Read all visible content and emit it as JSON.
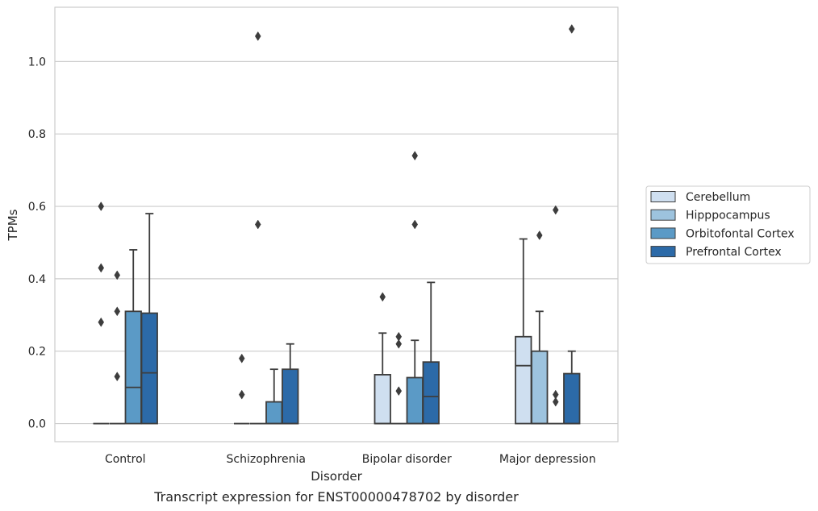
{
  "chart_data": {
    "type": "box",
    "caption": "Transcript expression for ENST00000478702 by disorder",
    "xlabel": "Disorder",
    "ylabel": "TPMs",
    "ylim": [
      -0.05,
      1.15
    ],
    "yticks": [
      0.0,
      0.2,
      0.4,
      0.6,
      0.8,
      1.0
    ],
    "ytick_labels": [
      "0.0",
      "0.2",
      "0.4",
      "0.6",
      "0.8",
      "1.0"
    ],
    "grid": "horizontal",
    "legend_position": "right",
    "categories": [
      "Control",
      "Schizophrenia",
      "Bipolar disorder",
      "Major depression"
    ],
    "series": [
      {
        "name": "Cerebellum",
        "color": "#cfdff0",
        "boxes": [
          {
            "q1": 0,
            "median": 0,
            "q3": 0,
            "whisker_low": 0,
            "whisker_high": 0,
            "outliers": [
              0.6,
              0.43,
              0.28
            ]
          },
          {
            "q1": 0,
            "median": 0,
            "q3": 0,
            "whisker_low": 0,
            "whisker_high": 0,
            "outliers": [
              0.18,
              0.08
            ]
          },
          {
            "q1": 0,
            "median": 0,
            "q3": 0.135,
            "whisker_low": 0,
            "whisker_high": 0.25,
            "outliers": [
              0.35
            ]
          },
          {
            "q1": 0,
            "median": 0.16,
            "q3": 0.24,
            "whisker_low": 0,
            "whisker_high": 0.51,
            "outliers": []
          }
        ]
      },
      {
        "name": "Hipppocampus",
        "color": "#9dc3de",
        "boxes": [
          {
            "q1": 0,
            "median": 0,
            "q3": 0,
            "whisker_low": 0,
            "whisker_high": 0,
            "outliers": [
              0.41,
              0.31,
              0.13
            ]
          },
          {
            "q1": 0,
            "median": 0,
            "q3": 0,
            "whisker_low": 0,
            "whisker_high": 0,
            "outliers": [
              1.07,
              0.55
            ]
          },
          {
            "q1": 0,
            "median": 0,
            "q3": 0,
            "whisker_low": 0,
            "whisker_high": 0,
            "outliers": [
              0.24,
              0.22,
              0.09
            ]
          },
          {
            "q1": 0,
            "median": 0,
            "q3": 0.2,
            "whisker_low": 0,
            "whisker_high": 0.31,
            "outliers": [
              0.52
            ]
          }
        ]
      },
      {
        "name": "Orbitofontal Cortex",
        "color": "#5b9ac6",
        "boxes": [
          {
            "q1": 0,
            "median": 0.1,
            "q3": 0.31,
            "whisker_low": 0,
            "whisker_high": 0.48,
            "outliers": []
          },
          {
            "q1": 0,
            "median": 0,
            "q3": 0.06,
            "whisker_low": 0,
            "whisker_high": 0.15,
            "outliers": []
          },
          {
            "q1": 0,
            "median": 0,
            "q3": 0.127,
            "whisker_low": 0,
            "whisker_high": 0.23,
            "outliers": [
              0.74,
              0.55
            ]
          },
          {
            "q1": 0,
            "median": 0,
            "q3": 0,
            "whisker_low": 0,
            "whisker_high": 0,
            "outliers": [
              0.59,
              0.08,
              0.06
            ]
          }
        ]
      },
      {
        "name": "Prefrontal Cortex",
        "color": "#2c6aa8",
        "boxes": [
          {
            "q1": 0,
            "median": 0.14,
            "q3": 0.305,
            "whisker_low": 0,
            "whisker_high": 0.58,
            "outliers": []
          },
          {
            "q1": 0,
            "median": 0,
            "q3": 0.15,
            "whisker_low": 0,
            "whisker_high": 0.22,
            "outliers": []
          },
          {
            "q1": 0,
            "median": 0.075,
            "q3": 0.17,
            "whisker_low": 0,
            "whisker_high": 0.39,
            "outliers": []
          },
          {
            "q1": 0,
            "median": 0,
            "q3": 0.138,
            "whisker_low": 0,
            "whisker_high": 0.2,
            "outliers": [
              1.09
            ]
          }
        ]
      }
    ]
  },
  "colors": {
    "line": "#3d3d3d",
    "grid": "#cccccc",
    "frame": "#cccccc",
    "text": "#262626"
  }
}
